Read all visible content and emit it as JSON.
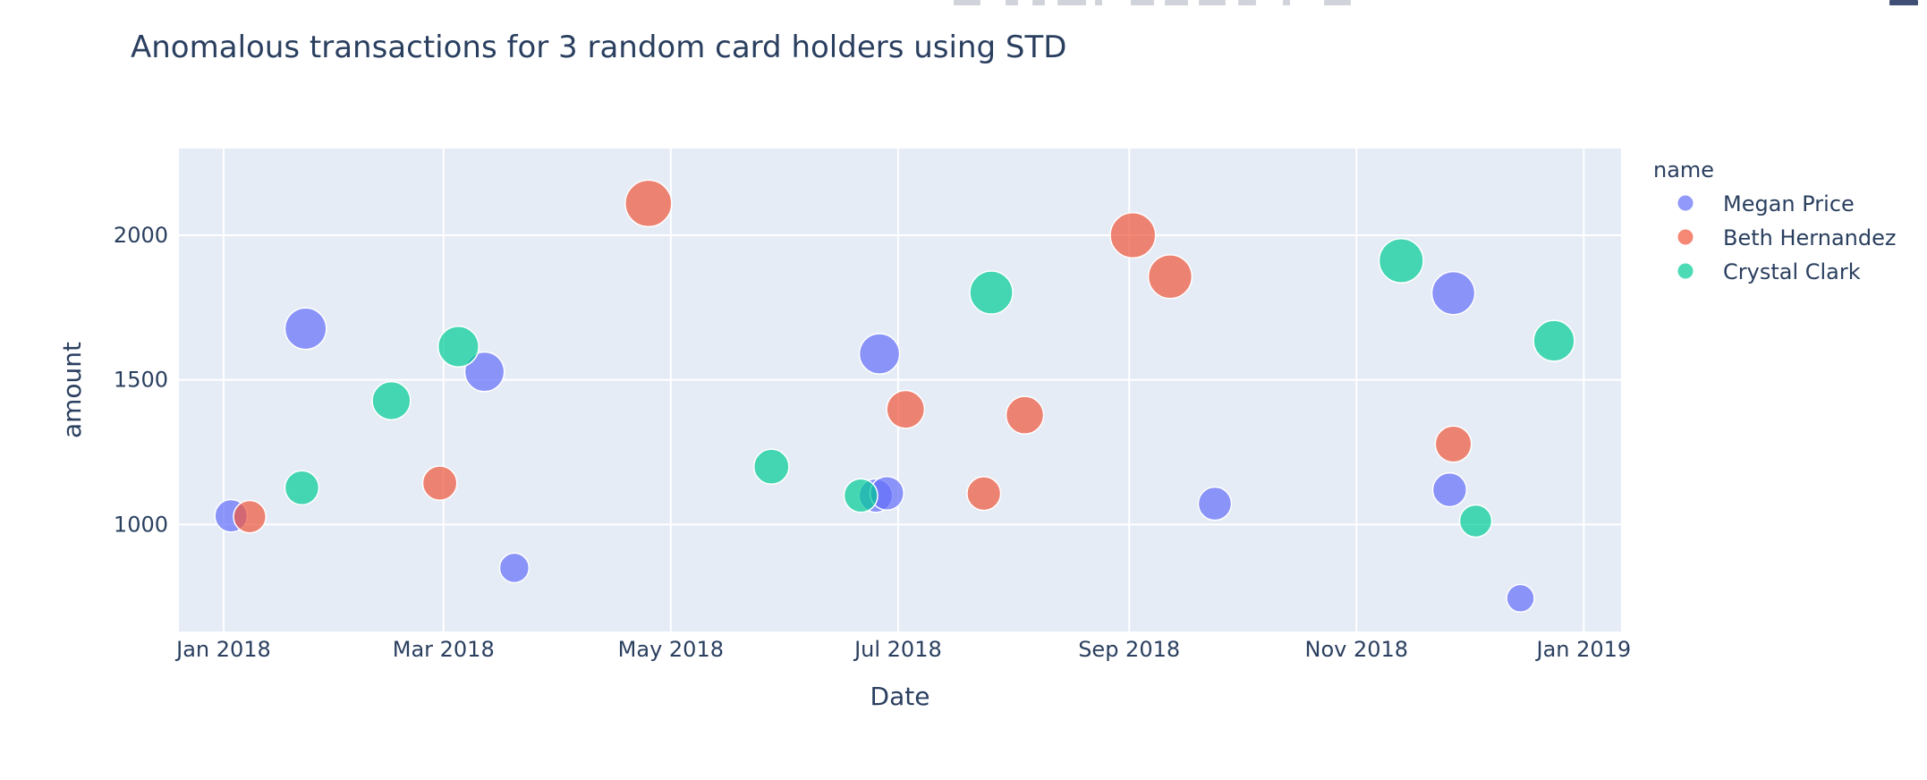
{
  "chart_data": {
    "type": "scatter",
    "title": "Anomalous transactions for 3 random card holders using STD",
    "xlabel": "Date",
    "ylabel": "amount",
    "xlim": [
      "2017-12-20",
      "2019-01-11"
    ],
    "ylim": [
      630,
      2300
    ],
    "x_ticks": [
      {
        "date": "2018-01-01",
        "label": "Jan 2018"
      },
      {
        "date": "2018-03-01",
        "label": "Mar 2018"
      },
      {
        "date": "2018-05-01",
        "label": "May 2018"
      },
      {
        "date": "2018-07-01",
        "label": "Jul 2018"
      },
      {
        "date": "2018-09-01",
        "label": "Sep 2018"
      },
      {
        "date": "2018-11-01",
        "label": "Nov 2018"
      },
      {
        "date": "2019-01-01",
        "label": "Jan 2019"
      }
    ],
    "y_ticks": [
      1000,
      1500,
      2000
    ],
    "grid": true,
    "marker_size_encodes": "amount",
    "legend": {
      "title": "name",
      "position": "right"
    },
    "series": [
      {
        "name": "Megan Price",
        "color": "#636efa",
        "points": [
          {
            "x": "2018-01-03",
            "y": 1030
          },
          {
            "x": "2018-01-23",
            "y": 1677
          },
          {
            "x": "2018-03-12",
            "y": 1528
          },
          {
            "x": "2018-03-20",
            "y": 850
          },
          {
            "x": "2018-06-25",
            "y": 1100
          },
          {
            "x": "2018-06-26",
            "y": 1590
          },
          {
            "x": "2018-06-28",
            "y": 1108
          },
          {
            "x": "2018-09-24",
            "y": 1072
          },
          {
            "x": "2018-11-26",
            "y": 1120
          },
          {
            "x": "2018-11-27",
            "y": 1800
          },
          {
            "x": "2018-12-15",
            "y": 745
          }
        ]
      },
      {
        "name": "Beth Hernandez",
        "color": "#ef553b",
        "points": [
          {
            "x": "2018-01-08",
            "y": 1027
          },
          {
            "x": "2018-02-28",
            "y": 1143
          },
          {
            "x": "2018-04-25",
            "y": 2110
          },
          {
            "x": "2018-07-03",
            "y": 1398
          },
          {
            "x": "2018-07-24",
            "y": 1107
          },
          {
            "x": "2018-08-04",
            "y": 1378
          },
          {
            "x": "2018-09-02",
            "y": 2000
          },
          {
            "x": "2018-09-12",
            "y": 1857
          },
          {
            "x": "2018-11-27",
            "y": 1278
          }
        ]
      },
      {
        "name": "Crystal Clark",
        "color": "#00cc96",
        "points": [
          {
            "x": "2018-01-22",
            "y": 1127
          },
          {
            "x": "2018-02-15",
            "y": 1428
          },
          {
            "x": "2018-03-05",
            "y": 1615
          },
          {
            "x": "2018-05-28",
            "y": 1200
          },
          {
            "x": "2018-06-21",
            "y": 1100
          },
          {
            "x": "2018-07-26",
            "y": 1802
          },
          {
            "x": "2018-11-13",
            "y": 1912
          },
          {
            "x": "2018-12-03",
            "y": 1012
          },
          {
            "x": "2018-12-24",
            "y": 1635
          }
        ]
      }
    ]
  }
}
